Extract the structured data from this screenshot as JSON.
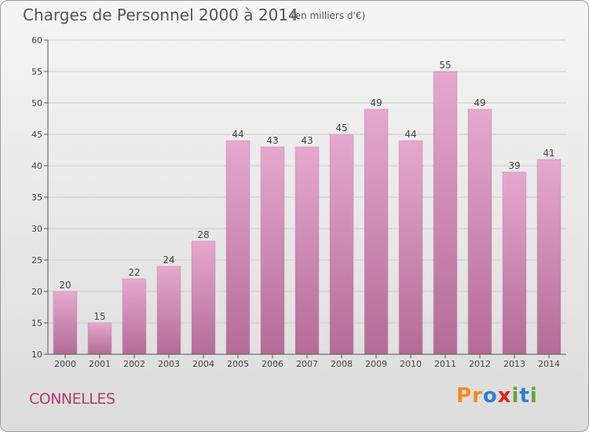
{
  "header": {
    "title": "Charges de Personnel 2000 à 2014",
    "subtitle": "(en milliers d'€)"
  },
  "footer": {
    "commune": "CONNELLES",
    "brand": [
      "P",
      "r",
      "o",
      "x",
      "i",
      "t",
      "i"
    ]
  },
  "colors": {
    "bar_top": "#e6a8cf",
    "bar_bottom": "#b36c97",
    "commune_text": "#b23a73",
    "axis": "#555555",
    "grid": "#cccccc",
    "brand_letters": [
      "#f28c1a",
      "#f28c1a",
      "#2e7fcf",
      "#e0241c",
      "#5aa832",
      "#2e7fcf",
      "#5aa832"
    ]
  },
  "chart_data": {
    "type": "bar",
    "categories": [
      "2000",
      "2001",
      "2002",
      "2003",
      "2004",
      "2005",
      "2006",
      "2007",
      "2008",
      "2009",
      "2010",
      "2011",
      "2012",
      "2013",
      "2014"
    ],
    "values": [
      20,
      15,
      22,
      24,
      28,
      44,
      43,
      43,
      45,
      49,
      44,
      55,
      49,
      39,
      41
    ],
    "title": "Charges de Personnel 2000 à 2014",
    "xlabel": "",
    "ylabel": "",
    "ylim": [
      10,
      60
    ],
    "yticks": [
      10,
      15,
      20,
      25,
      30,
      35,
      40,
      45,
      50,
      55,
      60
    ],
    "grid": true,
    "data_labels": true
  }
}
